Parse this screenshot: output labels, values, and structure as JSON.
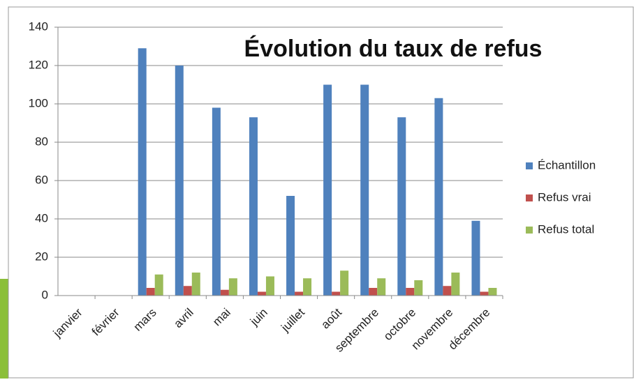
{
  "chart_data": {
    "type": "bar",
    "title": "Évolution du taux de refus",
    "categories": [
      "janvier",
      "février",
      "mars",
      "avril",
      "mai",
      "juin",
      "juillet",
      "août",
      "septembre",
      "octobre",
      "novembre",
      "décembre"
    ],
    "series": [
      {
        "name": "Échantillon",
        "color": "#4f81bd",
        "values": [
          0,
          0,
          129,
          120,
          98,
          93,
          52,
          110,
          110,
          93,
          103,
          39
        ]
      },
      {
        "name": "Refus vrai",
        "color": "#c0504d",
        "values": [
          0,
          0,
          4,
          5,
          3,
          2,
          2,
          2,
          4,
          4,
          5,
          2
        ]
      },
      {
        "name": "Refus total",
        "color": "#9bbb59",
        "values": [
          0,
          0,
          11,
          12,
          9,
          10,
          9,
          13,
          9,
          8,
          12,
          4
        ]
      }
    ],
    "ylim": [
      0,
      140
    ],
    "yticks": [
      0,
      20,
      40,
      60,
      80,
      100,
      120,
      140
    ],
    "grid": true,
    "legend": "right"
  }
}
